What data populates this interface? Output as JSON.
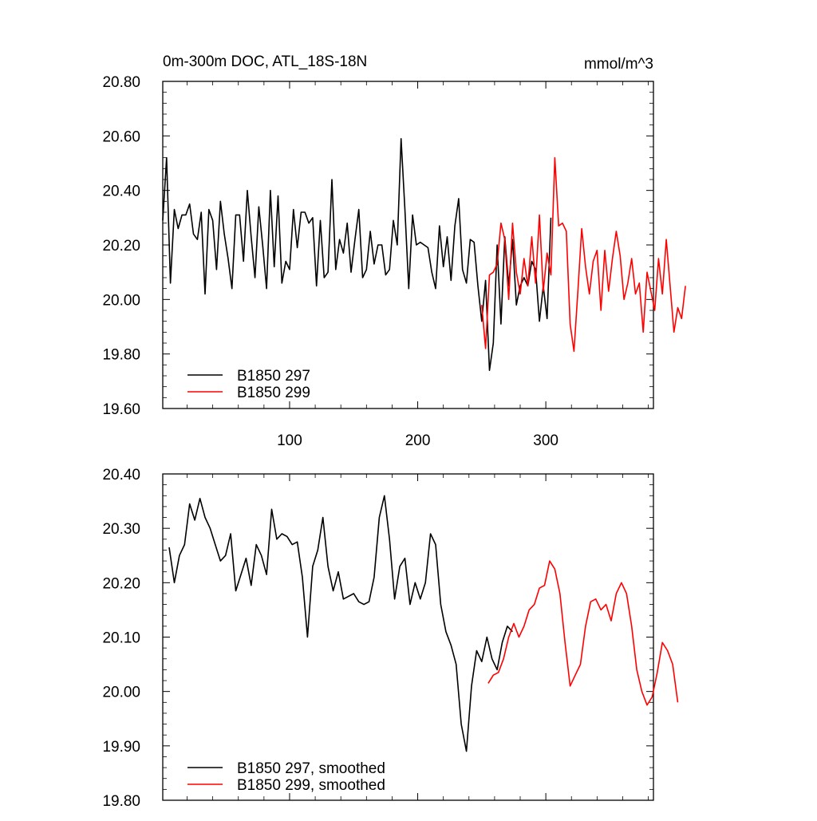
{
  "chart_data": [
    {
      "type": "line",
      "title": "0m-300m DOC, ATL_18S-18N",
      "units": "mmol/m^3",
      "xlim": [
        1,
        384
      ],
      "ylim": [
        19.6,
        20.8
      ],
      "xticks": [
        100,
        200,
        300
      ],
      "xtick_labels": [
        "100",
        "200",
        "300"
      ],
      "yticks": [
        19.6,
        19.8,
        20.0,
        20.2,
        20.4,
        20.6,
        20.8
      ],
      "ytick_labels": [
        "19.60",
        "19.80",
        "20.00",
        "20.20",
        "20.40",
        "20.60",
        "20.80"
      ],
      "legend_position": "bottom-left",
      "series": [
        {
          "name": "B1850 297",
          "color": "#000000",
          "x_start": 1,
          "x_step": 3,
          "values": [
            20.29,
            20.52,
            20.06,
            20.33,
            20.26,
            20.31,
            20.31,
            20.35,
            20.24,
            20.22,
            20.32,
            20.02,
            20.33,
            20.29,
            20.11,
            20.36,
            20.24,
            20.15,
            20.04,
            20.31,
            20.31,
            20.14,
            20.4,
            20.23,
            20.08,
            20.34,
            20.2,
            20.04,
            20.4,
            20.12,
            20.38,
            20.06,
            20.14,
            20.11,
            20.33,
            20.19,
            20.32,
            20.32,
            20.28,
            20.3,
            20.05,
            20.29,
            20.08,
            20.1,
            20.44,
            20.11,
            20.22,
            20.17,
            20.28,
            20.1,
            20.22,
            20.33,
            20.08,
            20.11,
            20.25,
            20.13,
            20.2,
            20.2,
            20.09,
            20.11,
            20.29,
            20.2,
            20.59,
            20.33,
            20.04,
            20.31,
            20.2,
            20.21,
            20.2,
            20.19,
            20.1,
            20.04,
            20.27,
            20.12,
            20.23,
            20.07,
            20.27,
            20.37,
            20.11,
            20.06,
            20.22,
            20.21,
            20.05,
            19.92,
            20.07,
            19.74,
            19.84,
            20.2,
            19.91,
            20.23,
            20.05,
            20.22,
            19.98,
            20.05,
            20.08,
            20.05,
            20.14,
            20.11,
            19.92,
            20.05,
            19.93,
            20.3
          ],
          "bind": "legends.0.items.0"
        },
        {
          "name": "B1850 299",
          "color": "#ff0000",
          "x_start": 250,
          "x_step": 3,
          "values": [
            19.98,
            19.82,
            20.09,
            20.1,
            20.13,
            20.28,
            20.22,
            20.0,
            20.28,
            20.1,
            20.02,
            20.15,
            20.05,
            20.23,
            20.06,
            20.31,
            20.03,
            20.17,
            20.09,
            20.52,
            20.27,
            20.28,
            20.25,
            19.91,
            19.81,
            20.03,
            20.26,
            20.12,
            20.02,
            20.14,
            20.18,
            19.96,
            20.18,
            20.03,
            20.15,
            20.25,
            20.16,
            20.0,
            20.06,
            20.15,
            20.02,
            20.06,
            19.88,
            20.1,
            20.03,
            19.96,
            20.15,
            20.02,
            20.22,
            20.05,
            19.88,
            19.97,
            19.93,
            20.05
          ],
          "bind": "legends.0.items.1"
        }
      ]
    },
    {
      "type": "line",
      "title": "",
      "units": "",
      "xlim": [
        1,
        384
      ],
      "ylim": [
        19.8,
        20.4
      ],
      "xticks": [
        100,
        200,
        300
      ],
      "xtick_labels": [],
      "yticks": [
        19.8,
        19.9,
        20.0,
        20.1,
        20.2,
        20.3,
        20.4
      ],
      "ytick_labels": [
        "19.80",
        "19.90",
        "20.00",
        "20.10",
        "20.20",
        "20.30",
        "20.40"
      ],
      "legend_position": "bottom-left",
      "series": [
        {
          "name": "B1850 297, smoothed",
          "color": "#000000",
          "x_start": 6,
          "x_step": 4,
          "values": [
            20.265,
            20.2,
            20.25,
            20.27,
            20.345,
            20.315,
            20.355,
            20.32,
            20.3,
            20.27,
            20.24,
            20.25,
            20.29,
            20.185,
            20.215,
            20.245,
            20.195,
            20.27,
            20.25,
            20.215,
            20.335,
            20.28,
            20.29,
            20.285,
            20.27,
            20.275,
            20.21,
            20.1,
            20.23,
            20.26,
            20.32,
            20.23,
            20.185,
            20.22,
            20.17,
            20.175,
            20.18,
            20.165,
            20.16,
            20.165,
            20.21,
            20.32,
            20.36,
            20.28,
            20.17,
            20.23,
            20.245,
            20.16,
            20.2,
            20.17,
            20.2,
            20.29,
            20.27,
            20.16,
            20.11,
            20.085,
            20.05,
            19.94,
            19.89,
            20.01,
            20.075,
            20.055,
            20.1,
            20.06,
            20.04,
            20.09,
            20.12,
            20.11
          ],
          "bind": "legends.1.items.0"
        },
        {
          "name": "B1850 299, smoothed",
          "color": "#ff0000",
          "x_start": 255,
          "x_step": 4,
          "values": [
            20.015,
            20.03,
            20.035,
            20.06,
            20.1,
            20.125,
            20.1,
            20.12,
            20.15,
            20.16,
            20.19,
            20.195,
            20.24,
            20.225,
            20.18,
            20.09,
            20.01,
            20.03,
            20.05,
            20.12,
            20.165,
            20.17,
            20.15,
            20.16,
            20.13,
            20.18,
            20.2,
            20.18,
            20.12,
            20.04,
            20.0,
            19.975,
            19.99,
            20.035,
            20.09,
            20.075,
            20.05,
            19.98
          ]
        }
      ]
    }
  ],
  "legends": [
    {
      "items": [
        "B1850 297",
        "B1850 299"
      ]
    },
    {
      "items": [
        "B1850 297, smoothed",
        "B1850 299, smoothed"
      ]
    }
  ]
}
